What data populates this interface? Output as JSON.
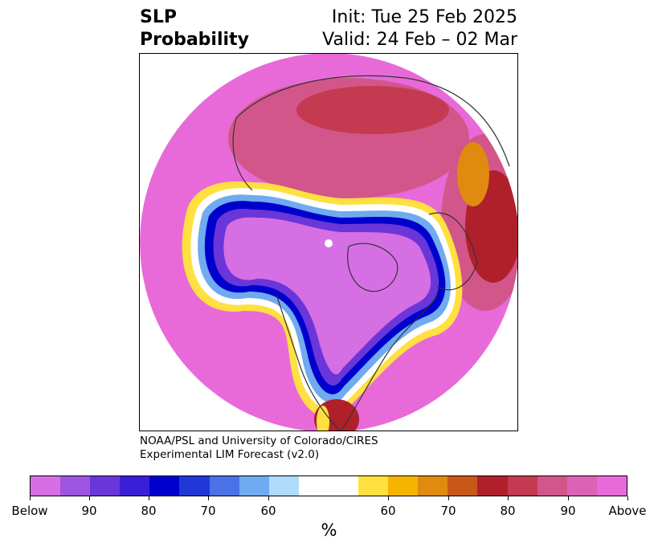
{
  "title": {
    "left_line1": "SLP",
    "left_line2": "Probability",
    "right_line1": "Init: Tue 25 Feb 2025",
    "right_line2": "Valid: 24 Feb – 02 Mar"
  },
  "credit": {
    "line1": "NOAA/PSL and University of Colorado/CIRES",
    "line2": "Experimental LIM Forecast (v2.0)"
  },
  "colorbar": {
    "unit": "%",
    "colors": [
      "#d66fe4",
      "#9d55e0",
      "#6a36d9",
      "#3a1fd6",
      "#0000cc",
      "#2038d8",
      "#4a72e6",
      "#70aaf0",
      "#b0dcfa",
      "#ffffff",
      "#ffe040",
      "#f4b400",
      "#e08a10",
      "#c8581a",
      "#b0202a",
      "#c43a50",
      "#d2568a",
      "#dc62b6",
      "#e86ad8"
    ],
    "tick_labels": [
      "Below",
      "90",
      "80",
      "70",
      "60",
      "60",
      "70",
      "80",
      "90",
      "Above"
    ]
  },
  "map": {
    "projection": "north-polar-stereographic",
    "field_colors": {
      "above_high": "#e86ad8",
      "above_mid": "#d2568a",
      "above_red": "#b0202a",
      "above_orange": "#e08a10",
      "above_yellow": "#ffe040",
      "neutral": "#ffffff",
      "below_light": "#70aaf0",
      "below_blue": "#0000cc",
      "below_purple": "#6a36d9",
      "below_violet": "#d66fe4"
    }
  }
}
